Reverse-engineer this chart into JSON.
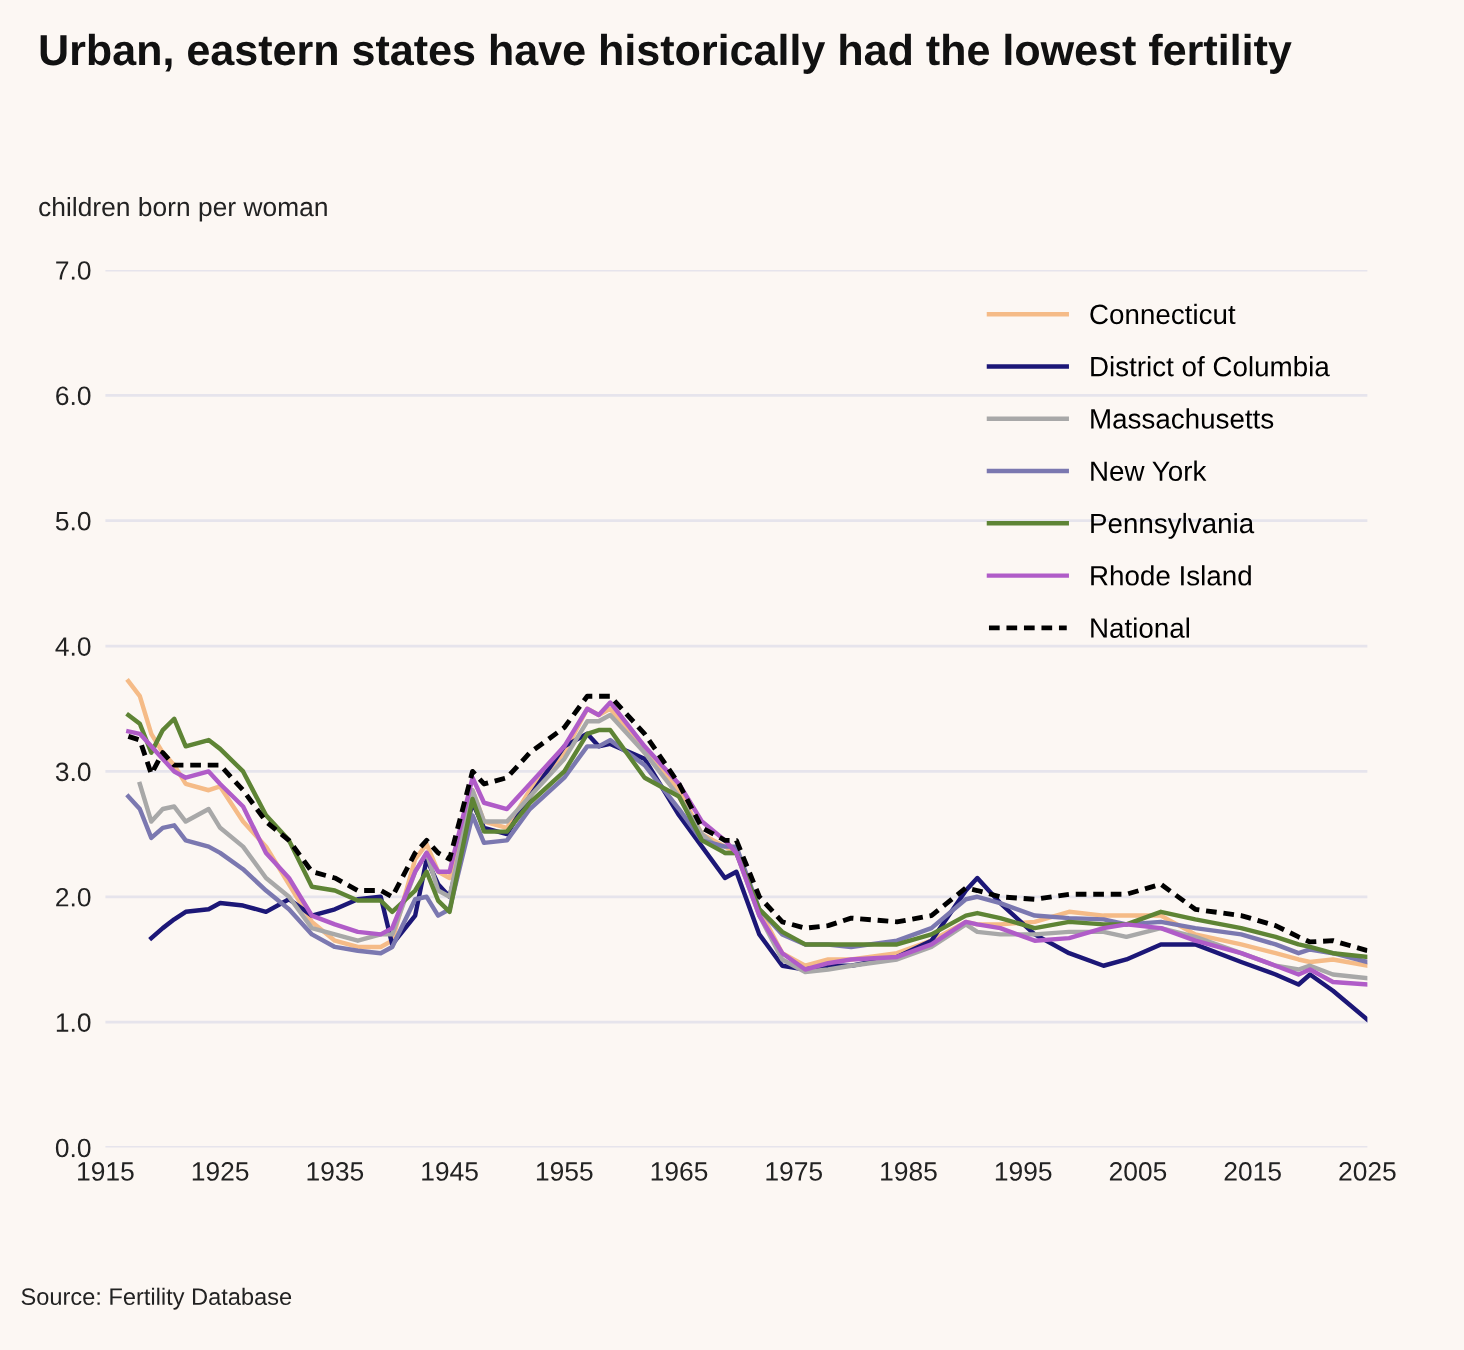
{
  "chart_data": {
    "type": "line",
    "title": "Urban, eastern states have historically had the lowest fertility",
    "ylabel": "children born per woman",
    "annotations": [
      "Source: Fertility Database"
    ],
    "x": [
      1917,
      1918,
      1919,
      1920,
      1921,
      1922,
      1924,
      1925,
      1927,
      1929,
      1931,
      1933,
      1935,
      1937,
      1939,
      1940,
      1942,
      1943,
      1944,
      1945,
      1947,
      1948,
      1950,
      1952,
      1955,
      1957,
      1958,
      1959,
      1962,
      1965,
      1967,
      1969,
      1970,
      1972,
      1974,
      1976,
      1978,
      1980,
      1984,
      1987,
      1990,
      1991,
      1993,
      1996,
      1999,
      2002,
      2004,
      2007,
      2010,
      2014,
      2017,
      2019,
      2020,
      2022,
      2025
    ],
    "series": [
      {
        "name": "Connecticut",
        "color": "#f5bb87",
        "line_style": "solid",
        "values": [
          3.72,
          3.6,
          3.3,
          3.15,
          3.05,
          2.9,
          2.85,
          2.88,
          2.6,
          2.4,
          2.1,
          1.8,
          1.65,
          1.6,
          1.6,
          1.65,
          2.3,
          2.42,
          2.2,
          2.15,
          2.85,
          2.6,
          2.55,
          2.85,
          3.15,
          3.5,
          3.45,
          3.5,
          3.15,
          2.85,
          2.5,
          2.4,
          2.35,
          1.9,
          1.55,
          1.45,
          1.5,
          1.5,
          1.55,
          1.65,
          1.8,
          1.78,
          1.78,
          1.8,
          1.88,
          1.85,
          1.85,
          1.85,
          1.7,
          1.62,
          1.55,
          1.5,
          1.48,
          1.5,
          1.45
        ]
      },
      {
        "name": "District of Columbia",
        "color": "#1c1777",
        "line_style": "solid",
        "values": [
          null,
          null,
          1.67,
          1.75,
          1.82,
          1.88,
          1.9,
          1.95,
          1.93,
          1.88,
          1.98,
          1.85,
          1.9,
          1.98,
          2.0,
          1.62,
          1.85,
          2.3,
          2.1,
          2.0,
          2.75,
          2.55,
          2.5,
          2.8,
          3.2,
          3.3,
          3.2,
          3.22,
          3.1,
          2.65,
          2.4,
          2.15,
          2.2,
          1.7,
          1.45,
          1.42,
          1.45,
          1.45,
          1.52,
          1.65,
          2.05,
          2.15,
          1.95,
          1.7,
          1.55,
          1.45,
          1.5,
          1.62,
          1.62,
          1.48,
          1.38,
          1.3,
          1.38,
          1.25,
          1.02
        ]
      },
      {
        "name": "Massachusetts",
        "color": "#a8a8a8",
        "line_style": "solid",
        "values": [
          null,
          2.9,
          2.6,
          2.7,
          2.72,
          2.6,
          2.7,
          2.55,
          2.4,
          2.15,
          2.0,
          1.75,
          1.7,
          1.65,
          1.7,
          1.7,
          2.2,
          2.35,
          2.05,
          2.0,
          2.85,
          2.6,
          2.6,
          2.8,
          3.1,
          3.4,
          3.4,
          3.45,
          3.15,
          2.8,
          2.5,
          2.35,
          2.35,
          1.85,
          1.5,
          1.4,
          1.42,
          1.45,
          1.5,
          1.6,
          1.78,
          1.72,
          1.7,
          1.7,
          1.72,
          1.72,
          1.68,
          1.75,
          1.68,
          1.55,
          1.45,
          1.42,
          1.45,
          1.38,
          1.35
        ]
      },
      {
        "name": "New York",
        "color": "#7b78b0",
        "line_style": "solid",
        "values": [
          2.8,
          2.7,
          2.47,
          2.55,
          2.57,
          2.45,
          2.4,
          2.35,
          2.22,
          2.05,
          1.9,
          1.7,
          1.6,
          1.57,
          1.55,
          1.6,
          1.98,
          2.0,
          1.85,
          1.9,
          2.65,
          2.43,
          2.45,
          2.7,
          2.95,
          3.2,
          3.2,
          3.25,
          3.05,
          2.7,
          2.45,
          2.4,
          2.4,
          1.9,
          1.7,
          1.62,
          1.62,
          1.6,
          1.65,
          1.75,
          1.98,
          2.0,
          1.95,
          1.85,
          1.83,
          1.82,
          1.78,
          1.8,
          1.75,
          1.7,
          1.62,
          1.55,
          1.58,
          1.55,
          1.48
        ]
      },
      {
        "name": "Pennsylvania",
        "color": "#5e8435",
        "line_style": "solid",
        "values": [
          3.45,
          3.38,
          3.15,
          3.33,
          3.42,
          3.2,
          3.25,
          3.18,
          3.0,
          2.65,
          2.45,
          2.08,
          2.05,
          1.97,
          1.97,
          1.88,
          2.05,
          2.2,
          1.97,
          1.88,
          2.78,
          2.52,
          2.52,
          2.75,
          3.0,
          3.3,
          3.33,
          3.33,
          2.95,
          2.8,
          2.45,
          2.35,
          2.35,
          1.9,
          1.72,
          1.62,
          1.62,
          1.62,
          1.62,
          1.7,
          1.85,
          1.87,
          1.83,
          1.75,
          1.8,
          1.78,
          1.78,
          1.88,
          1.82,
          1.75,
          1.68,
          1.62,
          1.6,
          1.55,
          1.52
        ]
      },
      {
        "name": "Rhode Island",
        "color": "#b05cc8",
        "line_style": "solid",
        "values": [
          3.32,
          3.3,
          3.2,
          3.1,
          3.0,
          2.95,
          3.0,
          2.9,
          2.72,
          2.35,
          2.15,
          1.85,
          1.78,
          1.72,
          1.7,
          1.75,
          2.2,
          2.35,
          2.2,
          2.2,
          2.95,
          2.75,
          2.7,
          2.9,
          3.2,
          3.5,
          3.45,
          3.55,
          3.2,
          2.9,
          2.6,
          2.45,
          2.35,
          1.85,
          1.55,
          1.42,
          1.47,
          1.5,
          1.52,
          1.62,
          1.8,
          1.78,
          1.75,
          1.65,
          1.67,
          1.75,
          1.78,
          1.75,
          1.65,
          1.55,
          1.45,
          1.38,
          1.42,
          1.32,
          1.3
        ]
      },
      {
        "name": "National",
        "color": "#000000",
        "line_style": "dashed",
        "values": [
          3.28,
          3.25,
          2.98,
          3.15,
          3.05,
          3.05,
          3.05,
          3.05,
          2.85,
          2.6,
          2.45,
          2.2,
          2.15,
          2.05,
          2.05,
          2.0,
          2.35,
          2.45,
          2.35,
          2.3,
          3.0,
          2.9,
          2.95,
          3.15,
          3.35,
          3.6,
          3.6,
          3.6,
          3.3,
          2.9,
          2.55,
          2.45,
          2.45,
          2.0,
          1.8,
          1.75,
          1.77,
          1.83,
          1.8,
          1.85,
          2.07,
          2.05,
          2.0,
          1.98,
          2.02,
          2.02,
          2.02,
          2.1,
          1.9,
          1.85,
          1.77,
          1.68,
          1.64,
          1.65,
          1.57
        ]
      }
    ],
    "xlim": [
      1915,
      2025
    ],
    "xticks": [
      1915,
      1925,
      1935,
      1945,
      1955,
      1965,
      1975,
      1985,
      1995,
      2005,
      2015,
      2025
    ],
    "ylim": [
      0,
      7
    ],
    "yticks": [
      {
        "value": 0,
        "label": "0.0"
      },
      {
        "value": 1,
        "label": "1.0"
      },
      {
        "value": 2,
        "label": "2.0"
      },
      {
        "value": 3,
        "label": "3.0"
      },
      {
        "value": 4,
        "label": "4.0"
      },
      {
        "value": 5,
        "label": "5.0"
      },
      {
        "value": 6,
        "label": "6.0"
      },
      {
        "value": 7,
        "label": "7.0"
      }
    ],
    "grid": "y",
    "legend": "top right",
    "marker": "none"
  }
}
